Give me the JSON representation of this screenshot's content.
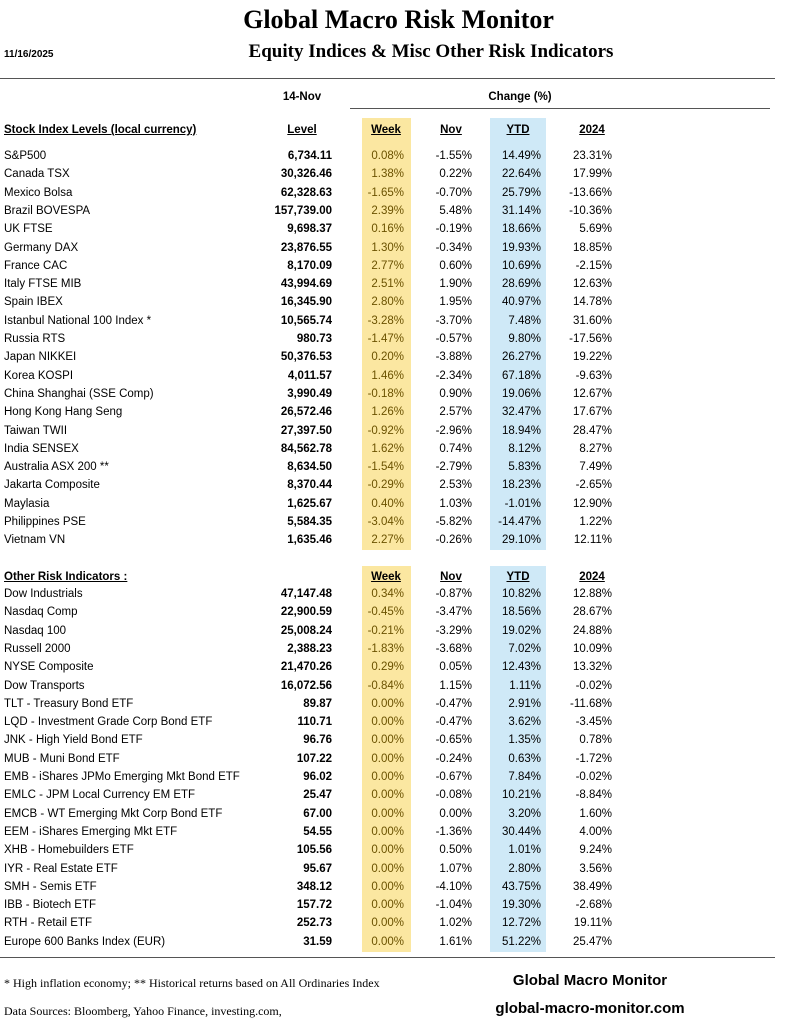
{
  "header": {
    "title": "Global Macro Risk Monitor",
    "subtitle": "Equity Indices & Misc Other Risk Indicators",
    "date": "11/16/2025"
  },
  "table": {
    "as_of": "14-Nov",
    "change_label": "Change (%)",
    "sections": [
      {
        "header": {
          "label": "Stock Index Levels (local currency)",
          "level": "Level",
          "week": "Week",
          "nov": "Nov",
          "ytd": "YTD",
          "y2024": "2024"
        },
        "rows": [
          [
            "S&P500",
            "6,734.11",
            "0.08%",
            "-1.55%",
            "14.49%",
            "23.31%"
          ],
          [
            "Canada TSX",
            "30,326.46",
            "1.38%",
            "0.22%",
            "22.64%",
            "17.99%"
          ],
          [
            "Mexico Bolsa",
            "62,328.63",
            "-1.65%",
            "-0.70%",
            "25.79%",
            "-13.66%"
          ],
          [
            "Brazil BOVESPA",
            "157,739.00",
            "2.39%",
            "5.48%",
            "31.14%",
            "-10.36%"
          ],
          [
            "UK FTSE",
            "9,698.37",
            "0.16%",
            "-0.19%",
            "18.66%",
            "5.69%"
          ],
          [
            "Germany DAX",
            "23,876.55",
            "1.30%",
            "-0.34%",
            "19.93%",
            "18.85%"
          ],
          [
            "France CAC",
            "8,170.09",
            "2.77%",
            "0.60%",
            "10.69%",
            "-2.15%"
          ],
          [
            "Italy FTSE MIB",
            "43,994.69",
            "2.51%",
            "1.90%",
            "28.69%",
            "12.63%"
          ],
          [
            "Spain IBEX",
            "16,345.90",
            "2.80%",
            "1.95%",
            "40.97%",
            "14.78%"
          ],
          [
            "Istanbul National 100 Index *",
            "10,565.74",
            "-3.28%",
            "-3.70%",
            "7.48%",
            "31.60%"
          ],
          [
            "Russia RTS",
            "980.73",
            "-1.47%",
            "-0.57%",
            "9.80%",
            "-17.56%"
          ],
          [
            "Japan NIKKEI",
            "50,376.53",
            "0.20%",
            "-3.88%",
            "26.27%",
            "19.22%"
          ],
          [
            "Korea KOSPI",
            "4,011.57",
            "1.46%",
            "-2.34%",
            "67.18%",
            "-9.63%"
          ],
          [
            "China Shanghai (SSE Comp)",
            "3,990.49",
            "-0.18%",
            "0.90%",
            "19.06%",
            "12.67%"
          ],
          [
            "Hong Kong Hang Seng",
            "26,572.46",
            "1.26%",
            "2.57%",
            "32.47%",
            "17.67%"
          ],
          [
            "Taiwan  TWII",
            "27,397.50",
            "-0.92%",
            "-2.96%",
            "18.94%",
            "28.47%"
          ],
          [
            "India SENSEX",
            "84,562.78",
            "1.62%",
            "0.74%",
            "8.12%",
            "8.27%"
          ],
          [
            "Australia ASX 200 **",
            "8,634.50",
            "-1.54%",
            "-2.79%",
            "5.83%",
            "7.49%"
          ],
          [
            "Jakarta Composite",
            "8,370.44",
            "-0.29%",
            "2.53%",
            "18.23%",
            "-2.65%"
          ],
          [
            "Maylasia",
            "1,625.67",
            "0.40%",
            "1.03%",
            "-1.01%",
            "12.90%"
          ],
          [
            "Philippines PSE",
            "5,584.35",
            "-3.04%",
            "-5.82%",
            "-14.47%",
            "1.22%"
          ],
          [
            "Vietnam VN",
            "1,635.46",
            "2.27%",
            "-0.26%",
            "29.10%",
            "12.11%"
          ]
        ]
      },
      {
        "header": {
          "label": "Other Risk Indicators :",
          "week": "Week",
          "nov": "Nov",
          "ytd": "YTD",
          "y2024": "2024"
        },
        "rows": [
          [
            "Dow Industrials",
            "47,147.48",
            "0.34%",
            "-0.87%",
            "10.82%",
            "12.88%"
          ],
          [
            "Nasdaq Comp",
            "22,900.59",
            "-0.45%",
            "-3.47%",
            "18.56%",
            "28.67%"
          ],
          [
            "Nasdaq 100",
            "25,008.24",
            "-0.21%",
            "-3.29%",
            "19.02%",
            "24.88%"
          ],
          [
            "Russell 2000",
            "2,388.23",
            "-1.83%",
            "-3.68%",
            "7.02%",
            "10.09%"
          ],
          [
            "NYSE Composite",
            "21,470.26",
            "0.29%",
            "0.05%",
            "12.43%",
            "13.32%"
          ],
          [
            "Dow Transports",
            "16,072.56",
            "-0.84%",
            "1.15%",
            "1.11%",
            "-0.02%"
          ],
          [
            "TLT - Treasury Bond ETF",
            "89.87",
            "0.00%",
            "-0.47%",
            "2.91%",
            "-11.68%"
          ],
          [
            "LQD - Investment Grade Corp Bond ETF",
            "110.71",
            "0.00%",
            "-0.47%",
            "3.62%",
            "-3.45%"
          ],
          [
            "JNK - High Yield Bond ETF",
            "96.76",
            "0.00%",
            "-0.65%",
            "1.35%",
            "0.78%"
          ],
          [
            "MUB - Muni Bond ETF",
            "107.22",
            "0.00%",
            "-0.24%",
            "0.63%",
            "-1.72%"
          ],
          [
            "EMB - iShares JPMo Emerging Mkt Bond ETF",
            "96.02",
            "0.00%",
            "-0.67%",
            "7.84%",
            "-0.02%"
          ],
          [
            "EMLC - JPM Local Currency EM ETF",
            "25.47",
            "0.00%",
            "-0.08%",
            "10.21%",
            "-8.84%"
          ],
          [
            "EMCB - WT Emerging Mkt Corp Bond ETF",
            "67.00",
            "0.00%",
            "0.00%",
            "3.20%",
            "1.60%"
          ],
          [
            "EEM - iShares Emerging Mkt ETF",
            "54.55",
            "0.00%",
            "-1.36%",
            "30.44%",
            "4.00%"
          ],
          [
            "XHB - Homebuilders ETF",
            "105.56",
            "0.00%",
            "0.50%",
            "1.01%",
            "9.24%"
          ],
          [
            "IYR - Real Estate ETF",
            "95.67",
            "0.00%",
            "1.07%",
            "2.80%",
            "3.56%"
          ],
          [
            "SMH - Semis ETF",
            "348.12",
            "0.00%",
            "-4.10%",
            "43.75%",
            "38.49%"
          ],
          [
            "IBB - Biotech ETF",
            "157.72",
            "0.00%",
            "-1.04%",
            "19.30%",
            "-2.68%"
          ],
          [
            "RTH - Retail ETF",
            "252.73",
            "0.00%",
            "1.02%",
            "12.72%",
            "19.11%"
          ],
          [
            "Europe 600 Banks Index (EUR)",
            "31.59",
            "0.00%",
            "1.61%",
            "51.22%",
            "25.47%"
          ]
        ]
      }
    ]
  },
  "footer": {
    "note": "*  High inflation economy;  **  Historical returns based on All Ordinaries Index",
    "sources": "Data Sources:  Bloomberg,  Yahoo Finance, investing.com,",
    "brand": "Global Macro Monitor",
    "url": "global-macro-monitor.com"
  }
}
